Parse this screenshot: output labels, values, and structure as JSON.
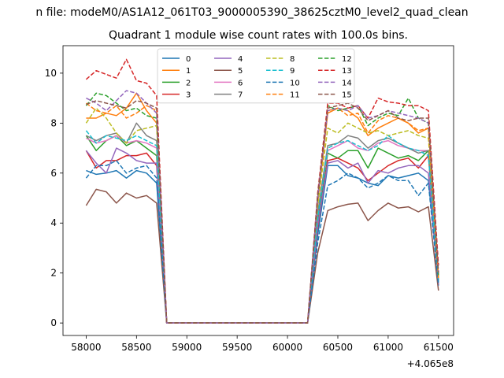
{
  "figure": {
    "suptitle": "n file: modeM0/AS1A12_061T03_9000005390_38625cztM0_level2_quad_clean",
    "title": "Quadrant 1 module wise count rates with 100.0s bins.",
    "offset_label": "+4.065e8"
  },
  "chart_data": {
    "type": "line",
    "title": "Quadrant 1 module wise count rates with 100.0s bins.",
    "xlabel": "",
    "ylabel": "",
    "x_offset": 406500000,
    "xlim": [
      57770,
      61650
    ],
    "ylim": [
      -0.5,
      11.1
    ],
    "xticks": [
      58000,
      58500,
      59000,
      59500,
      60000,
      60500,
      61000,
      61500
    ],
    "yticks": [
      0,
      2,
      4,
      6,
      8,
      10
    ],
    "grid": false,
    "legend": {
      "placement": "upper center",
      "columns": 4
    },
    "x": [
      58000,
      58100,
      58200,
      58300,
      58400,
      58500,
      58600,
      58700,
      58800,
      60200,
      60300,
      60400,
      60500,
      60600,
      60700,
      60800,
      60900,
      61000,
      61100,
      61200,
      61300,
      61400,
      61500
    ],
    "series": [
      {
        "name": "0",
        "color": "#1f77b4",
        "dash": "solid",
        "values": [
          6.1,
          5.95,
          6.0,
          6.1,
          5.8,
          6.1,
          6.0,
          5.6,
          0,
          0,
          3.5,
          6.3,
          6.3,
          5.9,
          5.8,
          5.6,
          5.5,
          5.9,
          5.8,
          5.9,
          6.0,
          5.7,
          1.8
        ]
      },
      {
        "name": "1",
        "color": "#ff7f0e",
        "dash": "solid",
        "values": [
          8.2,
          8.2,
          8.4,
          8.3,
          8.6,
          9.2,
          8.5,
          8.0,
          0,
          0,
          4.8,
          8.4,
          8.6,
          8.5,
          8.2,
          7.5,
          7.8,
          8.0,
          8.2,
          8.0,
          7.6,
          7.8,
          1.9
        ]
      },
      {
        "name": "2",
        "color": "#2ca02c",
        "dash": "solid",
        "values": [
          7.5,
          6.9,
          7.3,
          7.5,
          7.1,
          7.3,
          7.0,
          6.7,
          0,
          0,
          4.1,
          6.8,
          6.6,
          6.9,
          6.9,
          6.2,
          7.0,
          6.8,
          6.6,
          6.7,
          6.5,
          6.9,
          1.7
        ]
      },
      {
        "name": "3",
        "color": "#d62728",
        "dash": "solid",
        "values": [
          6.9,
          6.2,
          6.5,
          6.5,
          6.7,
          6.7,
          6.8,
          6.3,
          0,
          0,
          3.8,
          6.5,
          6.6,
          6.4,
          6.2,
          5.7,
          6.0,
          6.3,
          6.5,
          6.6,
          6.2,
          6.7,
          1.6
        ]
      },
      {
        "name": "4",
        "color": "#9467bd",
        "dash": "solid",
        "values": [
          6.9,
          6.4,
          6.0,
          7.0,
          6.8,
          6.5,
          6.4,
          6.4,
          0,
          0,
          3.9,
          6.4,
          6.5,
          6.2,
          6.4,
          5.6,
          6.1,
          6.0,
          6.2,
          6.3,
          6.3,
          6.0,
          1.5
        ]
      },
      {
        "name": "5",
        "color": "#8c564b",
        "dash": "solid",
        "values": [
          4.7,
          5.35,
          5.25,
          4.8,
          5.2,
          5.0,
          5.1,
          4.8,
          0,
          0,
          2.8,
          4.5,
          4.65,
          4.75,
          4.8,
          4.1,
          4.5,
          4.8,
          4.6,
          4.65,
          4.45,
          4.65,
          1.3
        ]
      },
      {
        "name": "6",
        "color": "#e377c2",
        "dash": "solid",
        "values": [
          7.4,
          7.2,
          7.3,
          7.5,
          7.2,
          7.3,
          7.2,
          7.0,
          0,
          0,
          4.3,
          6.9,
          7.1,
          7.3,
          7.0,
          6.9,
          7.2,
          7.3,
          7.1,
          7.0,
          6.9,
          6.9,
          1.6
        ]
      },
      {
        "name": "7",
        "color": "#7f7f7f",
        "dash": "solid",
        "values": [
          7.5,
          7.3,
          7.5,
          7.6,
          7.2,
          8.0,
          7.5,
          7.3,
          0,
          0,
          4.4,
          7.1,
          7.2,
          7.5,
          7.4,
          7.0,
          7.3,
          7.4,
          7.2,
          7.0,
          6.8,
          6.9,
          1.7
        ]
      },
      {
        "name": "8",
        "color": "#bcbd22",
        "dash": "dashed",
        "values": [
          8.0,
          8.6,
          8.2,
          7.6,
          7.2,
          7.7,
          7.8,
          7.9,
          0,
          0,
          4.7,
          7.8,
          7.6,
          8.0,
          7.8,
          7.6,
          7.7,
          7.5,
          7.6,
          7.7,
          7.5,
          7.4,
          1.8
        ]
      },
      {
        "name": "9",
        "color": "#17becf",
        "dash": "dashed",
        "values": [
          7.7,
          7.2,
          7.5,
          7.4,
          7.3,
          7.5,
          7.3,
          7.1,
          0,
          0,
          4.2,
          7.0,
          7.2,
          7.3,
          7.1,
          6.9,
          7.1,
          7.5,
          7.2,
          7.0,
          6.9,
          6.7,
          1.6
        ]
      },
      {
        "name": "10",
        "color": "#1f77b4",
        "dash": "dashed",
        "values": [
          5.8,
          6.3,
          6.3,
          6.5,
          6.0,
          6.2,
          6.3,
          5.8,
          0,
          0,
          3.2,
          5.5,
          5.7,
          6.0,
          5.8,
          5.4,
          5.6,
          5.9,
          5.7,
          5.7,
          5.1,
          5.6,
          1.5
        ]
      },
      {
        "name": "11",
        "color": "#ff7f0e",
        "dash": "dashed",
        "values": [
          8.8,
          8.5,
          8.4,
          8.7,
          8.2,
          8.4,
          8.7,
          8.5,
          0,
          0,
          5.0,
          8.5,
          8.6,
          8.3,
          8.4,
          7.6,
          8.1,
          8.3,
          8.2,
          8.0,
          7.7,
          7.8,
          1.8
        ]
      },
      {
        "name": "12",
        "color": "#2ca02c",
        "dash": "dashed",
        "values": [
          8.7,
          9.2,
          9.1,
          8.8,
          8.5,
          8.6,
          8.3,
          8.2,
          0,
          0,
          5.0,
          8.7,
          8.5,
          8.6,
          8.7,
          7.9,
          8.2,
          8.4,
          8.3,
          9.0,
          8.2,
          8.0,
          1.9
        ]
      },
      {
        "name": "13",
        "color": "#d62728",
        "dash": "dashed",
        "values": [
          9.75,
          10.1,
          9.95,
          9.8,
          10.55,
          9.7,
          9.6,
          9.1,
          0,
          0,
          5.2,
          8.8,
          8.8,
          8.6,
          8.7,
          8.2,
          9.0,
          8.85,
          8.8,
          8.7,
          8.7,
          8.5,
          2.3
        ]
      },
      {
        "name": "14",
        "color": "#9467bd",
        "dash": "dashed",
        "values": [
          9.0,
          8.8,
          8.5,
          8.9,
          9.3,
          9.2,
          8.8,
          8.4,
          0,
          0,
          5.0,
          8.5,
          8.6,
          8.5,
          8.7,
          8.2,
          8.3,
          8.5,
          8.4,
          8.3,
          8.2,
          8.0,
          2.0
        ]
      },
      {
        "name": "15",
        "color": "#8c564b",
        "dash": "dashed",
        "values": [
          8.75,
          8.9,
          8.8,
          8.7,
          8.6,
          8.9,
          8.8,
          8.6,
          0,
          0,
          5.1,
          8.6,
          8.7,
          8.8,
          8.6,
          8.1,
          8.3,
          8.5,
          8.2,
          8.1,
          8.2,
          8.2,
          2.0
        ]
      }
    ]
  }
}
